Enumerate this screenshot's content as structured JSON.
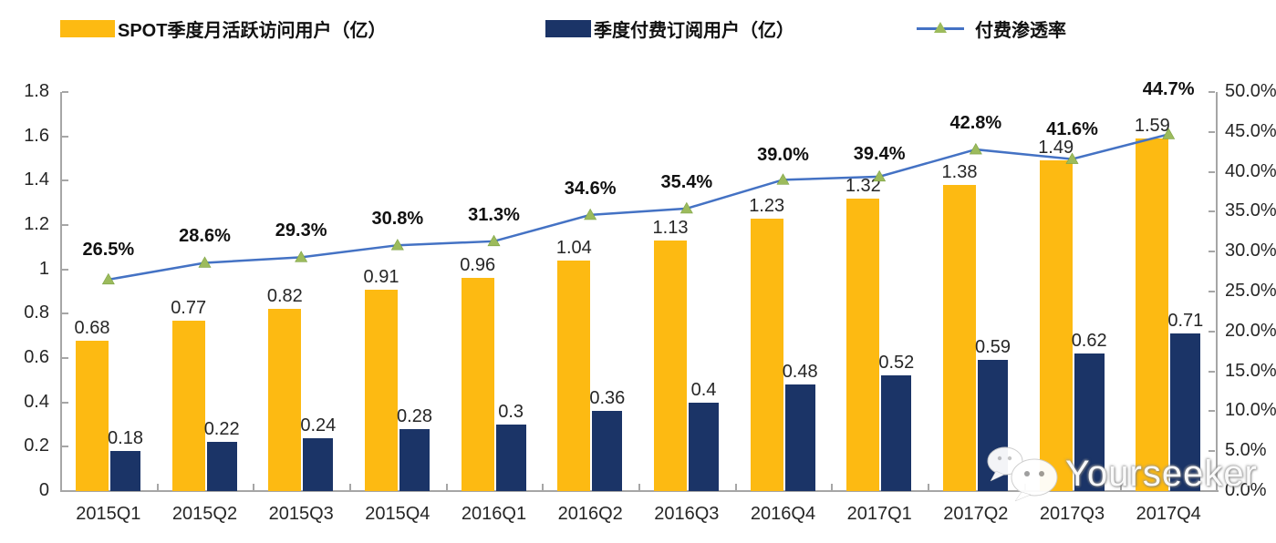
{
  "legend": {
    "items": [
      {
        "label": "SPOT季度月活跃访问用户（亿）",
        "swatch": "bar",
        "color": "#FDBA12"
      },
      {
        "label": "季度付费订阅用户（亿）",
        "swatch": "bar",
        "color": "#1B3467"
      },
      {
        "label": "付费渗透率",
        "swatch": "line-triangle",
        "color": "#4472C4",
        "marker_color": "#9CBB5C"
      }
    ]
  },
  "chart_data": {
    "type": "bar+line",
    "categories": [
      "2015Q1",
      "2015Q2",
      "2015Q3",
      "2015Q4",
      "2016Q1",
      "2016Q2",
      "2016Q3",
      "2016Q4",
      "2017Q1",
      "2017Q2",
      "2017Q3",
      "2017Q4"
    ],
    "series": [
      {
        "name": "SPOT季度月活跃访问用户（亿）",
        "type": "bar",
        "axis": "left",
        "color": "#FDBA12",
        "values": [
          0.68,
          0.77,
          0.82,
          0.91,
          0.96,
          1.04,
          1.13,
          1.23,
          1.32,
          1.38,
          1.49,
          1.59
        ],
        "labels": [
          "0.68",
          "0.77",
          "0.82",
          "0.91",
          "0.96",
          "1.04",
          "1.13",
          "1.23",
          "1.32",
          "1.38",
          "1.49",
          "1.59"
        ]
      },
      {
        "name": "季度付费订阅用户（亿）",
        "type": "bar",
        "axis": "left",
        "color": "#1B3467",
        "values": [
          0.18,
          0.22,
          0.24,
          0.28,
          0.3,
          0.36,
          0.4,
          0.48,
          0.52,
          0.59,
          0.62,
          0.71
        ],
        "labels": [
          "0.18",
          "0.22",
          "0.24",
          "0.28",
          "0.3",
          "0.36",
          "0.4",
          "0.48",
          "0.52",
          "0.59",
          "0.62",
          "0.71"
        ]
      },
      {
        "name": "付费渗透率",
        "type": "line",
        "axis": "right",
        "color": "#4472C4",
        "marker": "triangle",
        "marker_color": "#9CBB5C",
        "values": [
          26.5,
          28.6,
          29.3,
          30.8,
          31.3,
          34.6,
          35.4,
          39.0,
          39.4,
          42.8,
          41.6,
          44.7
        ],
        "labels": [
          "26.5%",
          "28.6%",
          "29.3%",
          "30.8%",
          "31.3%",
          "34.6%",
          "35.4%",
          "39.0%",
          "39.4%",
          "42.8%",
          "41.6%",
          "44.7%"
        ]
      }
    ],
    "left_axis": {
      "min": 0,
      "max": 1.8,
      "step": 0.2,
      "tick_labels": [
        "1.8",
        "1.6",
        "1.4",
        "1.2",
        "1",
        "0.8",
        "0.6",
        "0.4",
        "0.2",
        "0"
      ]
    },
    "right_axis": {
      "min": 0,
      "max": 50,
      "step": 5,
      "tick_labels": [
        "50.0%",
        "45.0%",
        "40.0%",
        "35.0%",
        "30.0%",
        "25.0%",
        "20.0%",
        "15.0%",
        "10.0%",
        "5.0%",
        "0.0%"
      ]
    },
    "grid": false,
    "legend_position": "top"
  },
  "watermark": {
    "text": "Yourseeker",
    "icon": "wechat-icon"
  }
}
